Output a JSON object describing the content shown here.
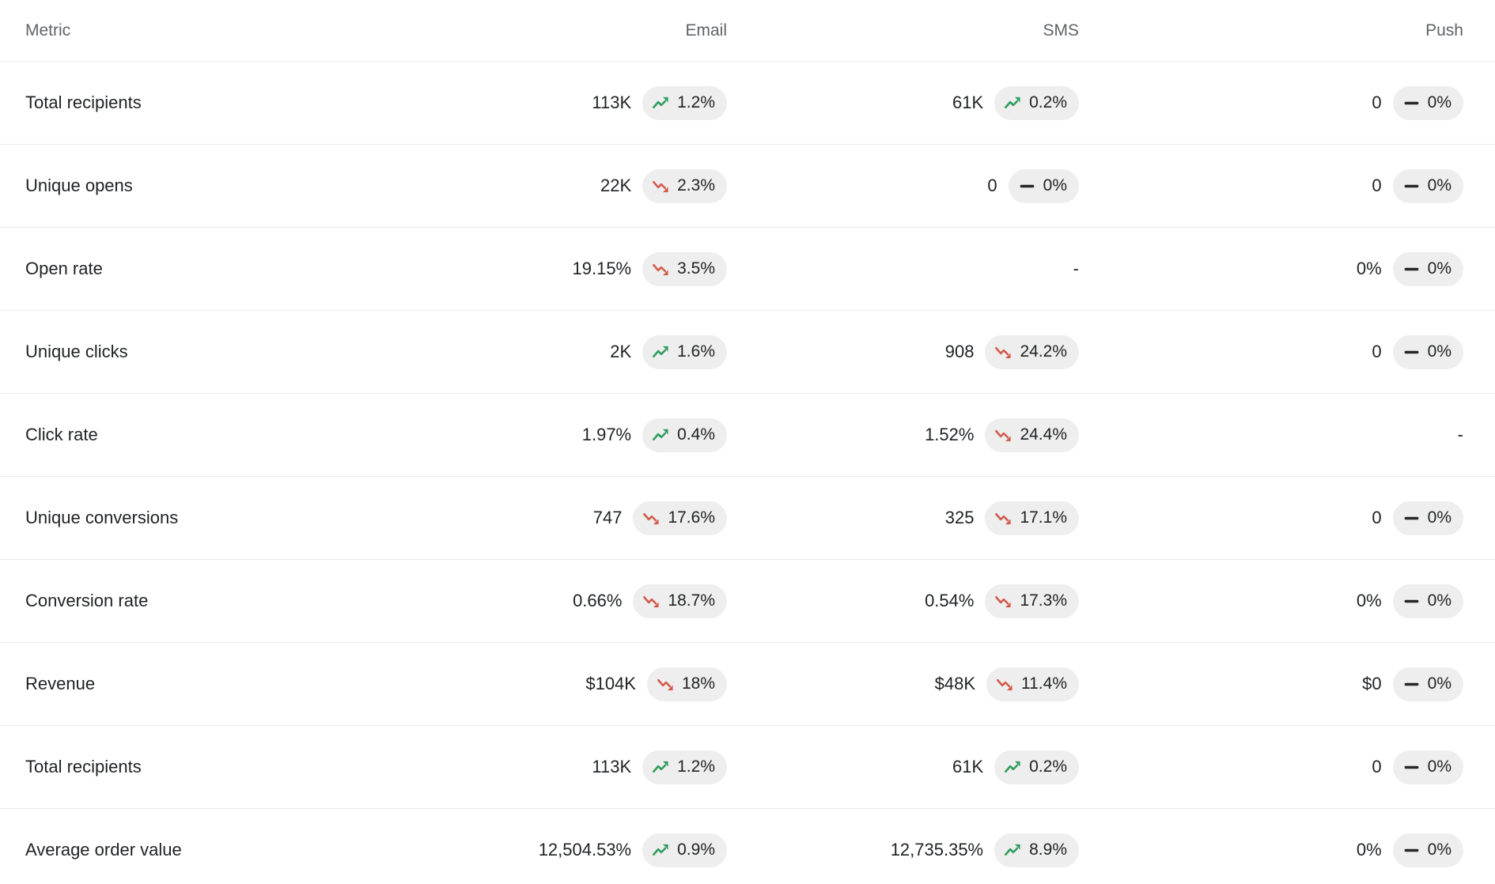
{
  "colors": {
    "background": "#ffffff",
    "text-primary": "#1f2224",
    "text-header": "#5f6468",
    "divider": "#e8e9ea",
    "badge-bg": "#eeeeee",
    "trend-up": "#2e9d5e",
    "trend-down": "#d45b4b",
    "trend-flat": "#26282b"
  },
  "table": {
    "columns": [
      {
        "key": "metric",
        "label": "Metric"
      },
      {
        "key": "email",
        "label": "Email"
      },
      {
        "key": "sms",
        "label": "SMS"
      },
      {
        "key": "push",
        "label": "Push"
      }
    ],
    "rows": [
      {
        "metric": "Total recipients",
        "cells": {
          "email": {
            "value": "113K",
            "trend": "up",
            "change": "1.2%"
          },
          "sms": {
            "value": "61K",
            "trend": "up",
            "change": "0.2%"
          },
          "push": {
            "value": "0",
            "trend": "flat",
            "change": "0%"
          }
        }
      },
      {
        "metric": "Unique opens",
        "cells": {
          "email": {
            "value": "22K",
            "trend": "down",
            "change": "2.3%"
          },
          "sms": {
            "value": "0",
            "trend": "flat",
            "change": "0%"
          },
          "push": {
            "value": "0",
            "trend": "flat",
            "change": "0%"
          }
        }
      },
      {
        "metric": "Open rate",
        "cells": {
          "email": {
            "value": "19.15%",
            "trend": "down",
            "change": "3.5%"
          },
          "sms": {
            "value": "-",
            "trend": "none",
            "change": null
          },
          "push": {
            "value": "0%",
            "trend": "flat",
            "change": "0%"
          }
        }
      },
      {
        "metric": "Unique clicks",
        "cells": {
          "email": {
            "value": "2K",
            "trend": "up",
            "change": "1.6%"
          },
          "sms": {
            "value": "908",
            "trend": "down",
            "change": "24.2%"
          },
          "push": {
            "value": "0",
            "trend": "flat",
            "change": "0%"
          }
        }
      },
      {
        "metric": "Click rate",
        "cells": {
          "email": {
            "value": "1.97%",
            "trend": "up",
            "change": "0.4%"
          },
          "sms": {
            "value": "1.52%",
            "trend": "down",
            "change": "24.4%"
          },
          "push": {
            "value": "-",
            "trend": "none",
            "change": null
          }
        }
      },
      {
        "metric": "Unique conversions",
        "cells": {
          "email": {
            "value": "747",
            "trend": "down",
            "change": "17.6%"
          },
          "sms": {
            "value": "325",
            "trend": "down",
            "change": "17.1%"
          },
          "push": {
            "value": "0",
            "trend": "flat",
            "change": "0%"
          }
        }
      },
      {
        "metric": "Conversion rate",
        "cells": {
          "email": {
            "value": "0.66%",
            "trend": "down",
            "change": "18.7%"
          },
          "sms": {
            "value": "0.54%",
            "trend": "down",
            "change": "17.3%"
          },
          "push": {
            "value": "0%",
            "trend": "flat",
            "change": "0%"
          }
        }
      },
      {
        "metric": "Revenue",
        "cells": {
          "email": {
            "value": "$104K",
            "trend": "down",
            "change": "18%"
          },
          "sms": {
            "value": "$48K",
            "trend": "down",
            "change": "11.4%"
          },
          "push": {
            "value": "$0",
            "trend": "flat",
            "change": "0%"
          }
        }
      },
      {
        "metric": "Total recipients",
        "cells": {
          "email": {
            "value": "113K",
            "trend": "up",
            "change": "1.2%"
          },
          "sms": {
            "value": "61K",
            "trend": "up",
            "change": "0.2%"
          },
          "push": {
            "value": "0",
            "trend": "flat",
            "change": "0%"
          }
        }
      },
      {
        "metric": "Average order value",
        "cells": {
          "email": {
            "value": "12,504.53%",
            "trend": "up",
            "change": "0.9%"
          },
          "sms": {
            "value": "12,735.35%",
            "trend": "up",
            "change": "8.9%"
          },
          "push": {
            "value": "0%",
            "trend": "flat",
            "change": "0%"
          }
        }
      }
    ]
  }
}
